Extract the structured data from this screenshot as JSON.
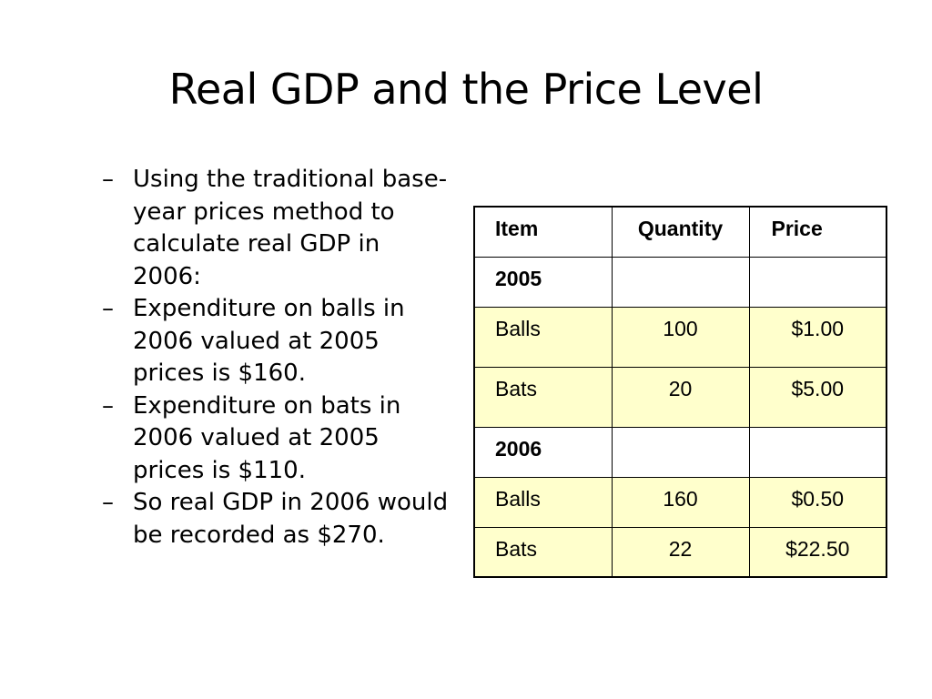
{
  "slide": {
    "title": "Real GDP and the Price Level"
  },
  "bullets": [
    {
      "marker": "–",
      "text": "Using the traditional base-year prices method to calculate real GDP in 2006:"
    },
    {
      "marker": "–",
      "text": "Expenditure on balls in 2006 valued at 2005 prices is $160."
    },
    {
      "marker": "–",
      "text": "Expenditure on bats in 2006 valued at 2005 prices is $110."
    },
    {
      "marker": "–",
      "text": "So real GDP in 2006 would be recorded as $270."
    }
  ],
  "table": {
    "headers": [
      "Item",
      "Quantity",
      "Price"
    ],
    "sections": [
      {
        "year": "2005",
        "rows": [
          {
            "item": "Balls",
            "quantity": "100",
            "price": "$1.00"
          },
          {
            "item": "Bats",
            "quantity": "20",
            "price": "$5.00"
          }
        ]
      },
      {
        "year": "2006",
        "rows": [
          {
            "item": "Balls",
            "quantity": "160",
            "price": "$0.50"
          },
          {
            "item": "Bats",
            "quantity": "22",
            "price": "$22.50"
          }
        ]
      }
    ],
    "colors": {
      "row_fill": "#ffffcc",
      "header_fill": "#ffffff",
      "border": "#000000"
    }
  }
}
